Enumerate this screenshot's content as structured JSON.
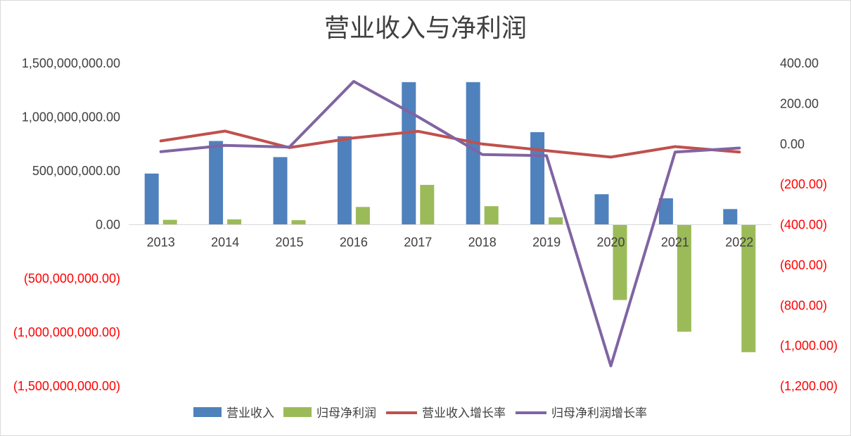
{
  "chart_data": {
    "type": "bar",
    "title": "营业收入与净利润",
    "categories": [
      "2013",
      "2014",
      "2015",
      "2016",
      "2017",
      "2018",
      "2019",
      "2020",
      "2021",
      "2022"
    ],
    "series": [
      {
        "name": "营业收入",
        "type": "bar",
        "axis": "left",
        "color": "#4F81BD",
        "values": [
          475000000,
          778000000,
          628000000,
          822000000,
          1325000000,
          1325000000,
          860000000,
          283000000,
          245000000,
          145000000
        ]
      },
      {
        "name": "归母净利润",
        "type": "bar",
        "axis": "left",
        "color": "#9BBB59",
        "values": [
          45000000,
          50000000,
          42000000,
          165000000,
          370000000,
          172000000,
          68000000,
          -700000000,
          -995000000,
          -1185000000
        ]
      },
      {
        "name": "营业收入增长率",
        "type": "line",
        "axis": "right",
        "color": "#C0504D",
        "values": [
          15,
          64,
          -18,
          30,
          63,
          0,
          -33,
          -65,
          -13,
          -40
        ]
      },
      {
        "name": "归母净利润增长率",
        "type": "line",
        "axis": "right",
        "color": "#8064A2",
        "values": [
          -38,
          -7,
          -15,
          310,
          135,
          -52,
          -58,
          -1100,
          -40,
          -20
        ]
      }
    ],
    "y_left": {
      "ylim": [
        -1500000000,
        1500000000
      ],
      "ticks": [
        1500000000,
        1000000000,
        500000000,
        0,
        -500000000,
        -1000000000,
        -1500000000
      ],
      "tick_labels": [
        "1,500,000,000.00",
        "1,000,000,000.00",
        "500,000,000.00",
        "0.00",
        "(500,000,000.00)",
        "(1,000,000,000.00)",
        "(1,500,000,000.00)"
      ]
    },
    "y_right": {
      "ylim": [
        -1200,
        400
      ],
      "ticks": [
        400,
        200,
        0,
        -200,
        -400,
        -600,
        -800,
        -1000,
        -1200
      ],
      "tick_labels": [
        "400.00",
        "200.00",
        "0.00",
        "(200.00)",
        "(400.00)",
        "(600.00)",
        "(800.00)",
        "(1,000.00)",
        "(1,200.00)"
      ]
    },
    "negative_label_color": "#FF0000",
    "tick_label_color": "#404040",
    "grid": false,
    "legend": "bottom"
  }
}
